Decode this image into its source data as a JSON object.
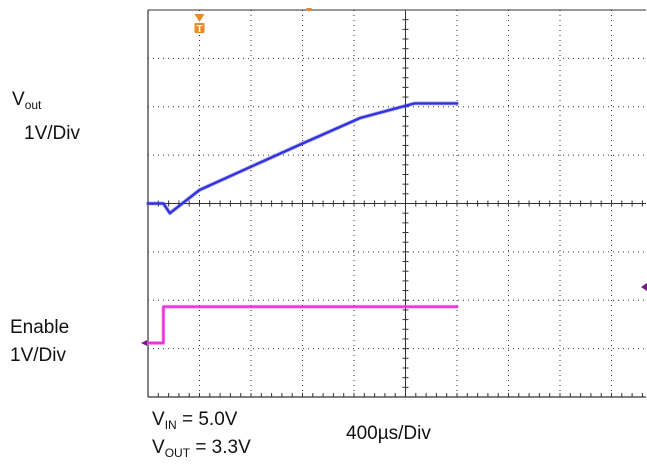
{
  "chart_data": {
    "type": "line",
    "x_axis": {
      "units_per_div": 400,
      "unit": "µs",
      "divisions": 10
    },
    "y_axis": {
      "divisions": 8
    },
    "grid": true,
    "series": [
      {
        "name": "Vout",
        "color": "#3333dd",
        "volts_per_div": 1,
        "x": [
          -400,
          -400,
          -280,
          -230,
          0,
          400,
          800,
          1250,
          1670,
          2000
        ],
        "y": [
          0,
          0,
          0,
          -0.2,
          0.28,
          0.76,
          1.24,
          1.77,
          2.07,
          2.07
        ]
      },
      {
        "name": "Enable",
        "color": "#ee33dd",
        "volts_per_div": 1,
        "x": [
          -400,
          -400,
          -280,
          -280,
          2000
        ],
        "y": [
          0,
          0,
          0,
          0.75,
          0.75
        ]
      }
    ],
    "trigger_marker": "T",
    "channel_labels": {
      "vout_sym": "V",
      "vout_sub": "out",
      "vout_scale": "1V/Div",
      "enable_name": "Enable",
      "enable_scale": "1V/Div"
    },
    "timebase": {
      "value": "400",
      "mu": "µ",
      "rest": "s/Div"
    },
    "conditions": {
      "vin_sym": "V",
      "vin_sub": "IN",
      "vin_val": "= 5.0V",
      "vout_sym": "V",
      "vout_sub": "OUT",
      "vout_val": "= 3.3V"
    },
    "colors": {
      "vout": "#3333dd",
      "enable": "#ee33dd",
      "trigger": "#ee8a22",
      "marker": "#7a1a8a",
      "grid": "#333333"
    }
  }
}
